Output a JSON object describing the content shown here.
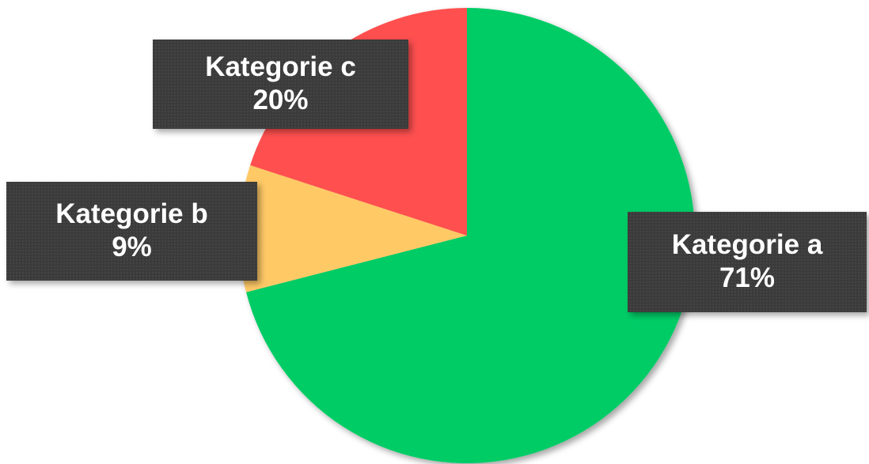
{
  "chart_data": {
    "type": "pie",
    "categories": [
      "Kategorie a",
      "Kategorie b",
      "Kategorie c"
    ],
    "values": [
      71,
      9,
      20
    ],
    "value_labels": [
      "71%",
      "9%",
      "20%"
    ],
    "colors": [
      "#00cc66",
      "#ffc966",
      "#ff5050"
    ]
  }
}
